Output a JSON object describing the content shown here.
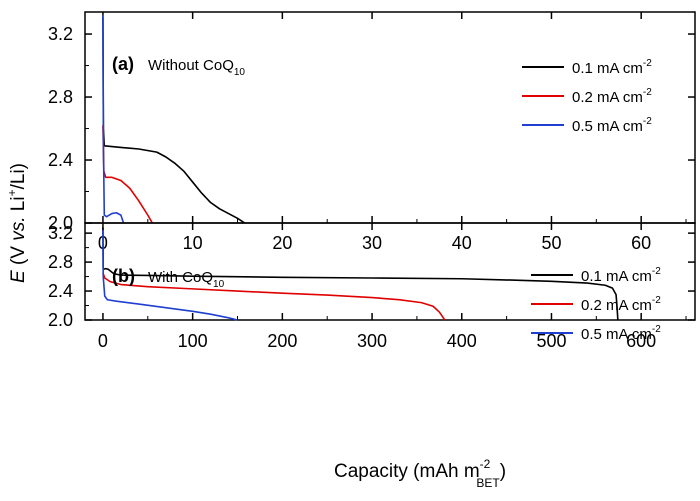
{
  "chart_data": [
    {
      "type": "line",
      "panel_id": "(a)",
      "title": "Without CoQ10",
      "xlim": [
        -2,
        66
      ],
      "ylim": [
        2.0,
        3.34
      ],
      "x_ticks": [
        0,
        10,
        20,
        30,
        40,
        50,
        60
      ],
      "y_ticks": [
        2.0,
        2.4,
        2.8,
        3.2
      ],
      "x_tick_labels_shown": true,
      "legend_position": "top-right",
      "series": [
        {
          "name": "0.1 mA cm-2",
          "color": "#000000",
          "points": [
            [
              0,
              3.3
            ],
            [
              0.05,
              2.6
            ],
            [
              0.15,
              2.49
            ],
            [
              2,
              2.48
            ],
            [
              4,
              2.47
            ],
            [
              6,
              2.45
            ],
            [
              7,
              2.42
            ],
            [
              8,
              2.38
            ],
            [
              9,
              2.33
            ],
            [
              10,
              2.26
            ],
            [
              11,
              2.19
            ],
            [
              12,
              2.13
            ],
            [
              13,
              2.09
            ],
            [
              14,
              2.06
            ],
            [
              15,
              2.03
            ],
            [
              15.8,
              2.0
            ]
          ]
        },
        {
          "name": "0.2 mA cm-2",
          "color": "#e00000",
          "points": [
            [
              0,
              2.62
            ],
            [
              0.1,
              2.33
            ],
            [
              0.3,
              2.29
            ],
            [
              1,
              2.29
            ],
            [
              2,
              2.27
            ],
            [
              3,
              2.22
            ],
            [
              4,
              2.14
            ],
            [
              5,
              2.05
            ],
            [
              5.5,
              2.0
            ]
          ]
        },
        {
          "name": "0.5 mA cm-2",
          "color": "#1f3fd0",
          "points": [
            [
              0,
              3.32
            ],
            [
              0.05,
              2.5
            ],
            [
              0.15,
              2.05
            ],
            [
              0.4,
              2.04
            ],
            [
              1,
              2.06
            ],
            [
              1.5,
              2.065
            ],
            [
              2,
              2.05
            ],
            [
              2.3,
              2.0
            ]
          ]
        }
      ]
    },
    {
      "type": "line",
      "panel_id": "(b)",
      "title": "With CoQ10",
      "xlim": [
        -20,
        660
      ],
      "ylim": [
        2.0,
        3.34
      ],
      "x_ticks": [
        0,
        100,
        200,
        300,
        400,
        500,
        600
      ],
      "y_ticks": [
        2.0,
        2.4,
        2.8,
        3.2
      ],
      "xlabel": "Capacity (mAh m-2BET)",
      "legend_position": "top-right",
      "series": [
        {
          "name": "0.1 mA cm-2",
          "color": "#000000",
          "points": [
            [
              0,
              3.28
            ],
            [
              0.3,
              2.7
            ],
            [
              3,
              2.71
            ],
            [
              6,
              2.7
            ],
            [
              9,
              2.67
            ],
            [
              12,
              2.64
            ],
            [
              20,
              2.62
            ],
            [
              50,
              2.615
            ],
            [
              100,
              2.605
            ],
            [
              200,
              2.59
            ],
            [
              300,
              2.58
            ],
            [
              400,
              2.57
            ],
            [
              460,
              2.55
            ],
            [
              500,
              2.535
            ],
            [
              540,
              2.51
            ],
            [
              560,
              2.48
            ],
            [
              568,
              2.44
            ],
            [
              572,
              2.35
            ],
            [
              573,
              2.2
            ],
            [
              574,
              2.0
            ]
          ]
        },
        {
          "name": "0.2 mA cm-2",
          "color": "#e00000",
          "points": [
            [
              0,
              2.65
            ],
            [
              2,
              2.58
            ],
            [
              8,
              2.53
            ],
            [
              20,
              2.49
            ],
            [
              50,
              2.46
            ],
            [
              100,
              2.43
            ],
            [
              150,
              2.4
            ],
            [
              200,
              2.37
            ],
            [
              250,
              2.345
            ],
            [
              300,
              2.31
            ],
            [
              330,
              2.28
            ],
            [
              355,
              2.24
            ],
            [
              368,
              2.19
            ],
            [
              375,
              2.11
            ],
            [
              380,
              2.02
            ],
            [
              381,
              2.0
            ]
          ]
        },
        {
          "name": "0.5 mA cm-2",
          "color": "#1f3fd0",
          "points": [
            [
              0,
              3.24
            ],
            [
              0.3,
              2.6
            ],
            [
              2,
              2.33
            ],
            [
              5,
              2.28
            ],
            [
              15,
              2.26
            ],
            [
              40,
              2.22
            ],
            [
              70,
              2.17
            ],
            [
              100,
              2.12
            ],
            [
              120,
              2.08
            ],
            [
              140,
              2.03
            ],
            [
              150,
              2.0
            ]
          ]
        }
      ]
    }
  ],
  "labels": {
    "panel_a_id": "(a)",
    "panel_a_text": "Without CoQ",
    "panel_a_sub": "10",
    "panel_b_id": "(b)",
    "panel_b_text": "With CoQ",
    "panel_b_sub": "10",
    "legend_base": "0.1 mA cm",
    "legend_base_2": "0.2 mA cm",
    "legend_base_3": "0.5 mA cm",
    "legend_exp": "-2",
    "ylabel_E": "E",
    "ylabel_rest": " (V ",
    "ylabel_vs": "vs.",
    "ylabel_li": " Li",
    "ylabel_plus": "+",
    "ylabel_end": "/Li)",
    "xlabel_main": "Capacity (mAh m",
    "xlabel_sup": "-2",
    "xlabel_sub": "BET",
    "xlabel_close": ")"
  }
}
